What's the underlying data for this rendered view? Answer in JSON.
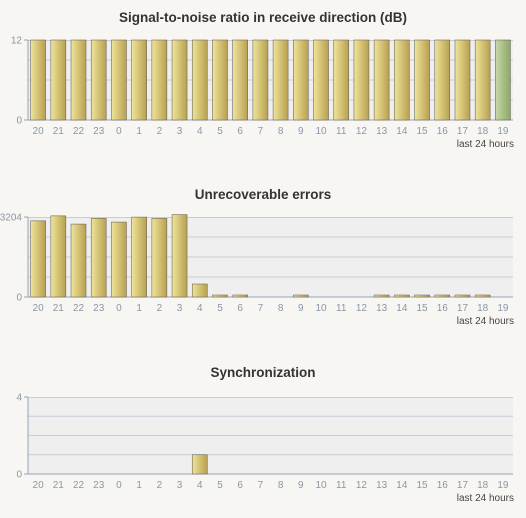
{
  "chart_data": [
    {
      "type": "bar",
      "title": "Signal-to-noise ratio in receive direction (dB)",
      "footer": "last 24 hours",
      "categories": [
        "20",
        "21",
        "22",
        "23",
        "0",
        "1",
        "2",
        "3",
        "4",
        "5",
        "6",
        "7",
        "8",
        "9",
        "10",
        "11",
        "12",
        "13",
        "14",
        "15",
        "16",
        "17",
        "18",
        "19"
      ],
      "values": [
        12,
        12,
        12,
        12,
        12,
        12,
        12,
        12,
        12,
        12,
        12,
        12,
        12,
        12,
        12,
        12,
        12,
        12,
        12,
        12,
        12,
        12,
        12,
        12
      ],
      "highlight_index": 23,
      "yticks": [
        "0",
        "12"
      ],
      "ylim": [
        0,
        12
      ],
      "grid": true
    },
    {
      "type": "bar",
      "title": "Unrecoverable errors",
      "footer": "last 24 hours",
      "categories": [
        "20",
        "21",
        "22",
        "23",
        "0",
        "1",
        "2",
        "3",
        "4",
        "5",
        "6",
        "7",
        "8",
        "9",
        "10",
        "11",
        "12",
        "13",
        "14",
        "15",
        "16",
        "17",
        "18",
        "19"
      ],
      "values": [
        3050,
        3250,
        2920,
        3150,
        3000,
        3200,
        3150,
        3300,
        520,
        30,
        30,
        0,
        0,
        20,
        0,
        0,
        0,
        20,
        20,
        20,
        20,
        20,
        20,
        0
      ],
      "yticks": [
        "0",
        "3204"
      ],
      "ylim": [
        0,
        3204
      ],
      "grid": true
    },
    {
      "type": "bar",
      "title": "Synchronization",
      "footer": "last 24 hours",
      "categories": [
        "20",
        "21",
        "22",
        "23",
        "0",
        "1",
        "2",
        "3",
        "4",
        "5",
        "6",
        "7",
        "8",
        "9",
        "10",
        "11",
        "12",
        "13",
        "14",
        "15",
        "16",
        "17",
        "18",
        "19"
      ],
      "values": [
        0,
        0,
        0,
        0,
        0,
        0,
        0,
        0,
        1,
        0,
        0,
        0,
        0,
        0,
        0,
        0,
        0,
        0,
        0,
        0,
        0,
        0,
        0,
        0
      ],
      "yticks": [
        "0",
        "4"
      ],
      "ylim": [
        0,
        4
      ],
      "grid": true
    }
  ],
  "colors": {
    "bar_light": "#efe49a",
    "bar_dark": "#b8a050",
    "bar_highlight_light": "#c8d8a8",
    "bar_highlight_dark": "#8aa868",
    "plot_bg": "#efefef",
    "grid": "#c8ccd6",
    "axis": "#9aa2b4"
  }
}
